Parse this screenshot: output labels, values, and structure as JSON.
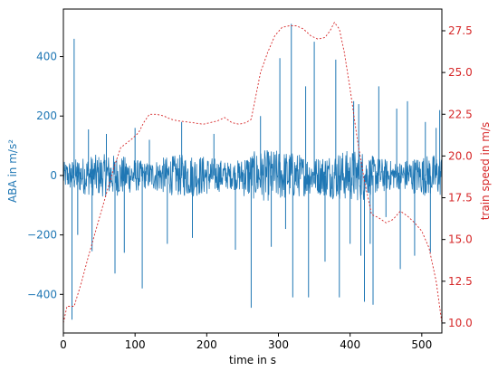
{
  "chart_data": {
    "type": "line",
    "xlabel": "time in s",
    "y1label": "ABA in m/s²",
    "y2label": "train speed in m/s",
    "xlim": [
      0,
      528
    ],
    "y1lim": [
      -530,
      560
    ],
    "y2lim": [
      9.4,
      28.8
    ],
    "xticks": [
      "0",
      "100",
      "200",
      "300",
      "400",
      "500"
    ],
    "xtick_values": [
      0,
      100,
      200,
      300,
      400,
      500
    ],
    "y1ticks": [
      "400",
      "200",
      "0",
      "−200",
      "−400"
    ],
    "y1tick_values": [
      400,
      200,
      0,
      -200,
      -400
    ],
    "y2ticks": [
      "27.5",
      "25.0",
      "22.5",
      "20.0",
      "17.5",
      "15.0",
      "12.5",
      "10.0"
    ],
    "y2tick_values": [
      27.5,
      25.0,
      22.5,
      20.0,
      17.5,
      15.0,
      12.5,
      10.0
    ],
    "colors": {
      "aba": "#1f77b4",
      "speed": "#d62728"
    },
    "series": [
      {
        "name": "",
        "axis": "left",
        "style": "solid",
        "noise_amplitude": 60,
        "spikes": [
          [
            12,
            -485
          ],
          [
            15,
            460
          ],
          [
            20,
            -200
          ],
          [
            35,
            155
          ],
          [
            40,
            -255
          ],
          [
            60,
            140
          ],
          [
            72,
            -330
          ],
          [
            85,
            -260
          ],
          [
            100,
            160
          ],
          [
            110,
            -380
          ],
          [
            120,
            120
          ],
          [
            145,
            -230
          ],
          [
            165,
            180
          ],
          [
            180,
            -210
          ],
          [
            210,
            140
          ],
          [
            240,
            -250
          ],
          [
            262,
            -445
          ],
          [
            275,
            200
          ],
          [
            290,
            -240
          ],
          [
            302,
            395
          ],
          [
            310,
            -180
          ],
          [
            318,
            510
          ],
          [
            320,
            -410
          ],
          [
            338,
            300
          ],
          [
            342,
            -410
          ],
          [
            350,
            450
          ],
          [
            365,
            -290
          ],
          [
            380,
            390
          ],
          [
            385,
            -410
          ],
          [
            400,
            -230
          ],
          [
            405,
            250
          ],
          [
            412,
            240
          ],
          [
            415,
            -270
          ],
          [
            420,
            -425
          ],
          [
            428,
            -230
          ],
          [
            432,
            -435
          ],
          [
            440,
            300
          ],
          [
            450,
            -140
          ],
          [
            465,
            225
          ],
          [
            470,
            -315
          ],
          [
            480,
            250
          ],
          [
            490,
            -270
          ],
          [
            505,
            180
          ],
          [
            512,
            -260
          ],
          [
            520,
            160
          ],
          [
            525,
            220
          ]
        ]
      },
      {
        "name": "",
        "axis": "right",
        "style": "dashed",
        "x": [
          0,
          5,
          15,
          25,
          35,
          45,
          55,
          65,
          72,
          80,
          95,
          105,
          112,
          120,
          130,
          140,
          150,
          160,
          180,
          195,
          205,
          215,
          225,
          235,
          245,
          255,
          262,
          268,
          275,
          285,
          295,
          305,
          315,
          325,
          335,
          345,
          355,
          365,
          372,
          378,
          385,
          392,
          400,
          410,
          420,
          430,
          440,
          450,
          460,
          470,
          480,
          490,
          500,
          510,
          520,
          528
        ],
        "y": [
          10.0,
          11.0,
          11.0,
          12.4,
          14.0,
          15.5,
          17.0,
          18.5,
          19.5,
          20.5,
          21.0,
          21.4,
          22.0,
          22.5,
          22.5,
          22.4,
          22.2,
          22.1,
          22.0,
          21.9,
          22.0,
          22.1,
          22.3,
          22.0,
          21.9,
          22.0,
          22.2,
          23.5,
          25.0,
          26.2,
          27.2,
          27.7,
          27.8,
          27.8,
          27.6,
          27.2,
          27.0,
          27.1,
          27.5,
          28.0,
          27.6,
          26.2,
          24.0,
          21.0,
          18.5,
          16.5,
          16.3,
          16.0,
          16.2,
          16.7,
          16.4,
          16.0,
          15.5,
          14.5,
          12.5,
          10.0
        ]
      }
    ]
  }
}
